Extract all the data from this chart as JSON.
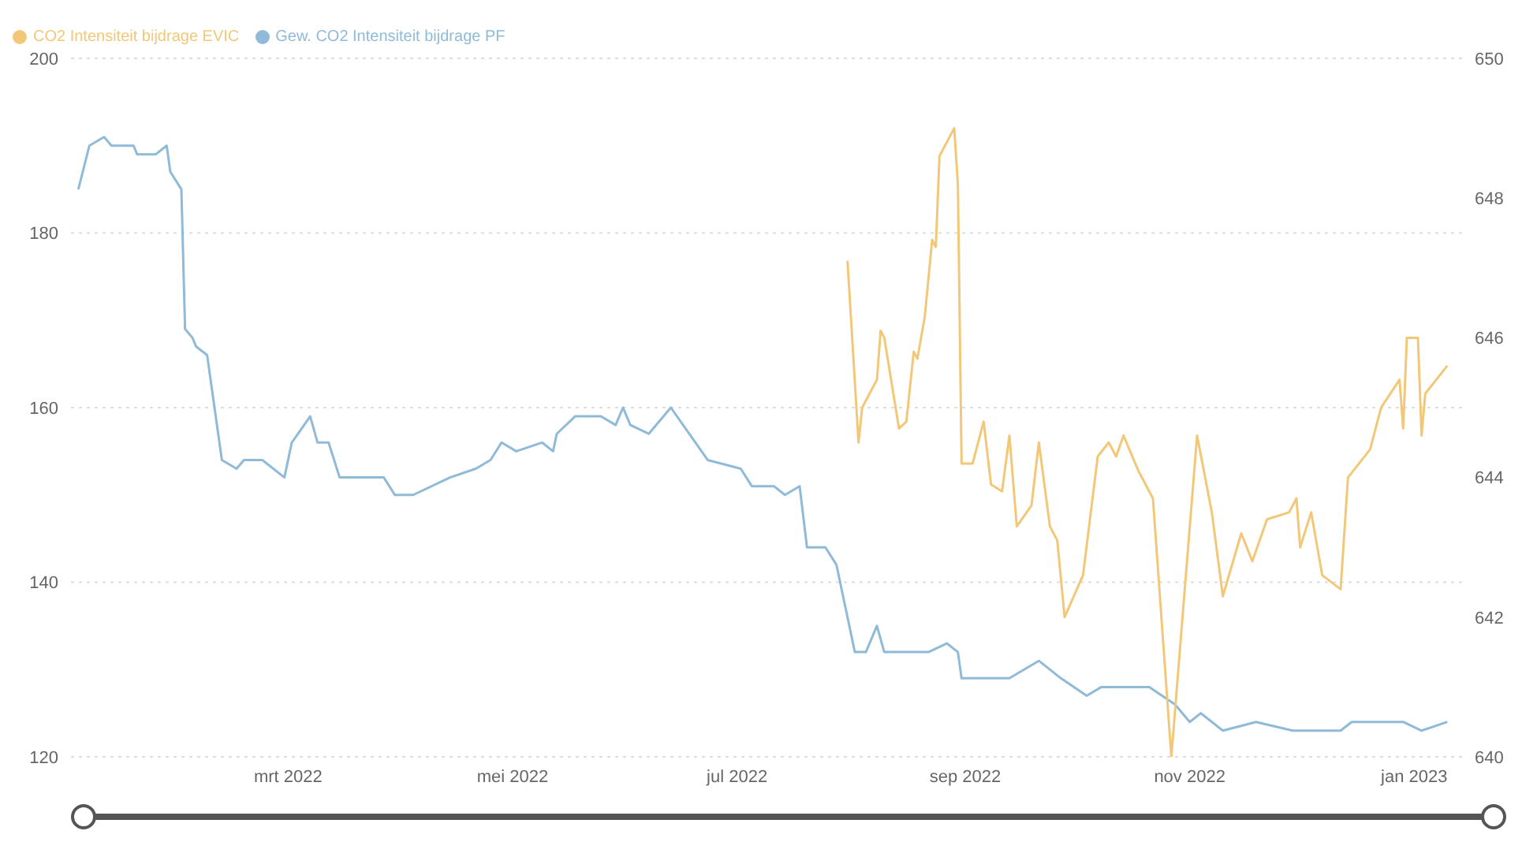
{
  "chart_data": {
    "type": "line",
    "xlim": [
      "2022-01-01",
      "2023-01-14"
    ],
    "xticks": [
      {
        "value": "2022-03-01",
        "label": "mrt 2022"
      },
      {
        "value": "2022-05-01",
        "label": "mei 2022"
      },
      {
        "value": "2022-07-01",
        "label": "jul 2022"
      },
      {
        "value": "2022-09-01",
        "label": "sep 2022"
      },
      {
        "value": "2022-11-01",
        "label": "nov 2022"
      },
      {
        "value": "2023-01-01",
        "label": "jan 2023"
      }
    ],
    "ylim": [
      120,
      200
    ],
    "yticks": [
      120,
      140,
      160,
      180,
      200
    ],
    "y2lim": [
      640,
      650
    ],
    "y2ticks": [
      640,
      642,
      644,
      646,
      648,
      650
    ],
    "grid": "y",
    "legend": "top left",
    "marker": "none",
    "line_style": "solid",
    "series": [
      {
        "name": "Gew. CO2 Intensiteit bijdrage PF",
        "color": "#8fbad8",
        "x": [
          "2022-01-03",
          "2022-01-06",
          "2022-01-10",
          "2022-01-12",
          "2022-01-14",
          "2022-01-18",
          "2022-01-19",
          "2022-01-24",
          "2022-01-27",
          "2022-01-28",
          "2022-01-31",
          "2022-02-01",
          "2022-02-03",
          "2022-02-04",
          "2022-02-07",
          "2022-02-11",
          "2022-02-15",
          "2022-02-17",
          "2022-02-22",
          "2022-02-28",
          "2022-03-02",
          "2022-03-07",
          "2022-03-09",
          "2022-03-12",
          "2022-03-15",
          "2022-03-21",
          "2022-03-27",
          "2022-03-30",
          "2022-04-04",
          "2022-04-14",
          "2022-04-21",
          "2022-04-25",
          "2022-04-28",
          "2022-05-02",
          "2022-05-09",
          "2022-05-12",
          "2022-05-13",
          "2022-05-18",
          "2022-05-25",
          "2022-05-29",
          "2022-05-31",
          "2022-06-02",
          "2022-06-07",
          "2022-06-13",
          "2022-06-18",
          "2022-06-23",
          "2022-07-02",
          "2022-07-05",
          "2022-07-11",
          "2022-07-14",
          "2022-07-18",
          "2022-07-20",
          "2022-07-25",
          "2022-07-28",
          "2022-08-02",
          "2022-08-05",
          "2022-08-08",
          "2022-08-10",
          "2022-08-13",
          "2022-08-22",
          "2022-08-27",
          "2022-08-30",
          "2022-08-31",
          "2022-09-06",
          "2022-09-13",
          "2022-09-21",
          "2022-09-27",
          "2022-10-04",
          "2022-10-08",
          "2022-10-17",
          "2022-10-21",
          "2022-10-28",
          "2022-11-01",
          "2022-11-04",
          "2022-11-10",
          "2022-11-19",
          "2022-11-29",
          "2022-12-12",
          "2022-12-15",
          "2022-12-29",
          "2023-01-03",
          "2023-01-10"
        ],
        "values": [
          185,
          190,
          191,
          190,
          190,
          190,
          189,
          189,
          190,
          187,
          185,
          169,
          168,
          167,
          166,
          154,
          153,
          154,
          154,
          152,
          156,
          159,
          156,
          156,
          152,
          152,
          152,
          150,
          150,
          152,
          153,
          154,
          156,
          155,
          156,
          155,
          157,
          159,
          159,
          158,
          160,
          158,
          157,
          160,
          157,
          154,
          153,
          151,
          151,
          150,
          151,
          144,
          144,
          142,
          132,
          132,
          135,
          132,
          132,
          132,
          133,
          132,
          129,
          129,
          129,
          131,
          129,
          127,
          128,
          128,
          128,
          126,
          124,
          125,
          123,
          124,
          123,
          123,
          124,
          124,
          123,
          124
        ]
      },
      {
        "name": "CO2 Intensiteit bijdrage EVIC",
        "color": "#f2c878",
        "axis": "y2",
        "x": [
          "2022-07-31",
          "2022-08-03",
          "2022-08-04",
          "2022-08-08",
          "2022-08-09",
          "2022-08-10",
          "2022-08-14",
          "2022-08-16",
          "2022-08-18",
          "2022-08-19",
          "2022-08-21",
          "2022-08-23",
          "2022-08-24",
          "2022-08-25",
          "2022-08-29",
          "2022-08-30",
          "2022-08-31",
          "2022-09-03",
          "2022-09-06",
          "2022-09-08",
          "2022-09-11",
          "2022-09-13",
          "2022-09-15",
          "2022-09-19",
          "2022-09-21",
          "2022-09-24",
          "2022-09-26",
          "2022-09-28",
          "2022-10-03",
          "2022-10-07",
          "2022-10-10",
          "2022-10-12",
          "2022-10-14",
          "2022-10-18",
          "2022-10-22",
          "2022-10-27",
          "2022-11-03",
          "2022-11-07",
          "2022-11-10",
          "2022-11-15",
          "2022-11-18",
          "2022-11-22",
          "2022-11-28",
          "2022-11-30",
          "2022-12-01",
          "2022-12-04",
          "2022-12-07",
          "2022-12-12",
          "2022-12-14",
          "2022-12-20",
          "2022-12-23",
          "2022-12-28",
          "2022-12-29",
          "2022-12-30",
          "2023-01-02",
          "2023-01-03",
          "2023-01-04",
          "2023-01-10"
        ],
        "values": [
          647.1,
          644.5,
          645,
          645.4,
          646.1,
          646,
          644.7,
          644.8,
          645.8,
          645.7,
          646.3,
          647.4,
          647.3,
          648.6,
          649,
          648.2,
          644.2,
          644.2,
          644.8,
          643.9,
          643.8,
          644.6,
          643.3,
          643.6,
          644.5,
          643.3,
          643.1,
          642,
          642.6,
          644.3,
          644.5,
          644.3,
          644.6,
          644.1,
          643.7,
          640,
          644.6,
          643.5,
          642.3,
          643.2,
          642.8,
          643.4,
          643.5,
          643.7,
          643,
          643.5,
          642.6,
          642.4,
          644,
          644.4,
          645,
          645.4,
          644.7,
          646,
          646,
          644.6,
          645.2,
          645.6
        ]
      }
    ]
  }
}
